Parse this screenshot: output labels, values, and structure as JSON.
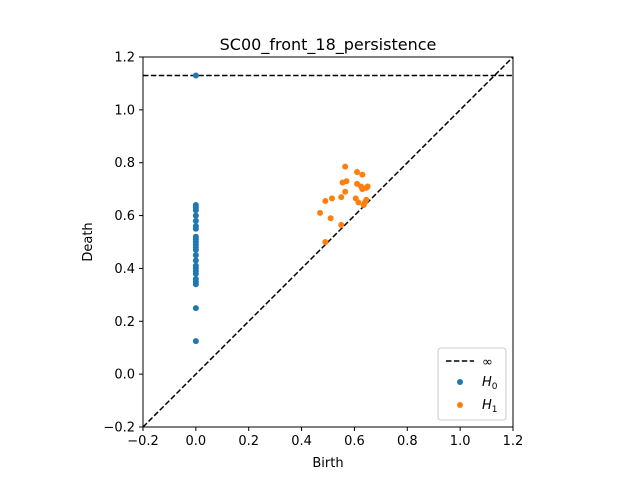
{
  "chart_data": {
    "type": "scatter",
    "title": "SC00_front_18_persistence",
    "xlabel": "Birth",
    "ylabel": "Death",
    "xlim": [
      -0.2,
      1.2
    ],
    "ylim": [
      -0.2,
      1.2
    ],
    "xticks": [
      "−0.2",
      "0.0",
      "0.2",
      "0.4",
      "0.6",
      "0.8",
      "1.0",
      "1.2"
    ],
    "yticks": [
      "−0.2",
      "0.0",
      "0.2",
      "0.4",
      "0.6",
      "0.8",
      "1.0",
      "1.2"
    ],
    "xtick_values": [
      -0.2,
      0.0,
      0.2,
      0.4,
      0.6,
      0.8,
      1.0,
      1.2
    ],
    "ytick_values": [
      -0.2,
      0.0,
      0.2,
      0.4,
      0.6,
      0.8,
      1.0,
      1.2
    ],
    "grid": false,
    "legend_position": "bottom-right",
    "infinity_line": {
      "label": "∞",
      "y": 1.13,
      "color": "#000000"
    },
    "diagonal": {
      "from": [
        -0.2,
        -0.2
      ],
      "to": [
        1.2,
        1.2
      ],
      "color": "#000000"
    },
    "series": [
      {
        "name": "H",
        "subscript": "0",
        "color": "#1f77b4",
        "points": [
          [
            0,
            1.13
          ],
          [
            0,
            0.64
          ],
          [
            0,
            0.63
          ],
          [
            0,
            0.62
          ],
          [
            0,
            0.6
          ],
          [
            0,
            0.58
          ],
          [
            0,
            0.56
          ],
          [
            0,
            0.55
          ],
          [
            0,
            0.52
          ],
          [
            0,
            0.51
          ],
          [
            0,
            0.5
          ],
          [
            0,
            0.49
          ],
          [
            0,
            0.48
          ],
          [
            0,
            0.47
          ],
          [
            0,
            0.45
          ],
          [
            0,
            0.43
          ],
          [
            0,
            0.41
          ],
          [
            0,
            0.4
          ],
          [
            0,
            0.39
          ],
          [
            0,
            0.38
          ],
          [
            0,
            0.36
          ],
          [
            0,
            0.35
          ],
          [
            0,
            0.34
          ],
          [
            0,
            0.25
          ],
          [
            0,
            0.125
          ]
        ]
      },
      {
        "name": "H",
        "subscript": "1",
        "color": "#ff7f0e",
        "points": [
          [
            0.47,
            0.61
          ],
          [
            0.49,
            0.5
          ],
          [
            0.49,
            0.655
          ],
          [
            0.51,
            0.59
          ],
          [
            0.515,
            0.665
          ],
          [
            0.55,
            0.67
          ],
          [
            0.55,
            0.565
          ],
          [
            0.555,
            0.725
          ],
          [
            0.565,
            0.785
          ],
          [
            0.565,
            0.69
          ],
          [
            0.57,
            0.73
          ],
          [
            0.605,
            0.665
          ],
          [
            0.61,
            0.72
          ],
          [
            0.61,
            0.765
          ],
          [
            0.615,
            0.65
          ],
          [
            0.625,
            0.71
          ],
          [
            0.63,
            0.755
          ],
          [
            0.63,
            0.7
          ],
          [
            0.635,
            0.64
          ],
          [
            0.645,
            0.705
          ],
          [
            0.645,
            0.66
          ],
          [
            0.65,
            0.71
          ],
          [
            0.64,
            0.65
          ]
        ]
      }
    ]
  }
}
